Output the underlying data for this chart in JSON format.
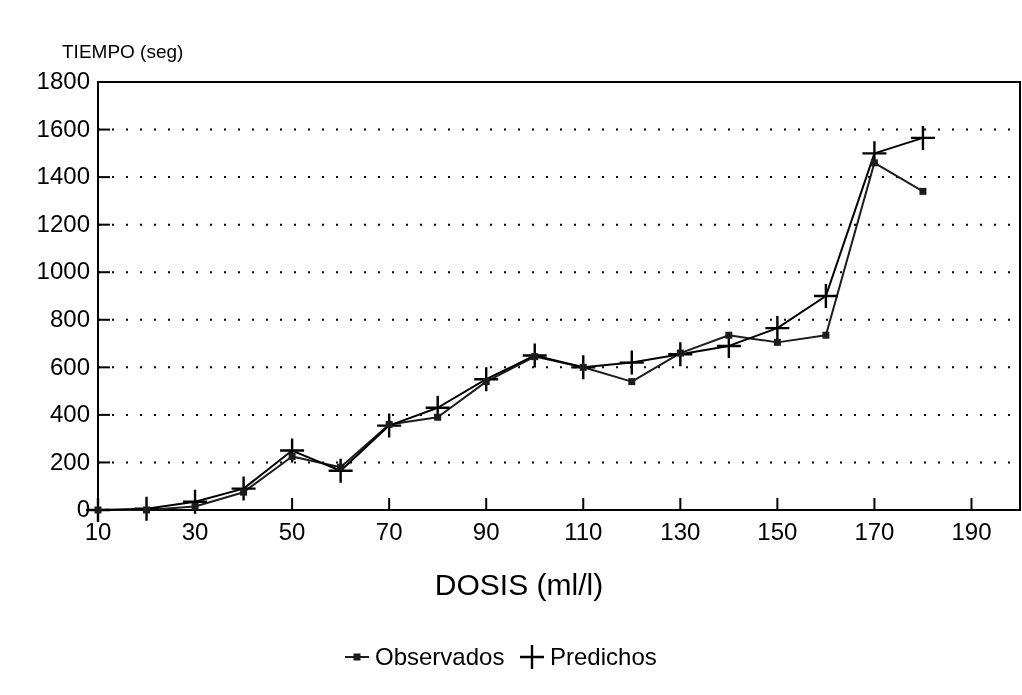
{
  "chart_data": {
    "type": "line",
    "xlabel": "DOSIS (ml/l)",
    "ylabel": "TIEMPO (seg)",
    "x": [
      10,
      20,
      30,
      40,
      50,
      60,
      70,
      80,
      90,
      100,
      110,
      120,
      130,
      140,
      150,
      160,
      170,
      180
    ],
    "xlim": [
      10,
      200
    ],
    "xticks": [
      10,
      30,
      50,
      70,
      90,
      110,
      130,
      150,
      170,
      190
    ],
    "ylim": [
      0,
      1800
    ],
    "yticks": [
      0,
      200,
      400,
      600,
      800,
      1000,
      1200,
      1400,
      1600,
      1800
    ],
    "grid": "y",
    "legend": "bottom",
    "series": [
      {
        "name": "Observados",
        "color": "#1c1c1c",
        "marker": "square",
        "values": [
          0,
          0,
          15,
          75,
          225,
          180,
          360,
          390,
          540,
          645,
          600,
          540,
          660,
          735,
          705,
          735,
          1460,
          1340
        ]
      },
      {
        "name": "Predichos",
        "color": "#000000",
        "marker": "cross",
        "values": [
          0,
          5,
          35,
          90,
          250,
          165,
          355,
          430,
          550,
          650,
          600,
          620,
          655,
          690,
          765,
          900,
          1500,
          1565
        ]
      }
    ]
  }
}
